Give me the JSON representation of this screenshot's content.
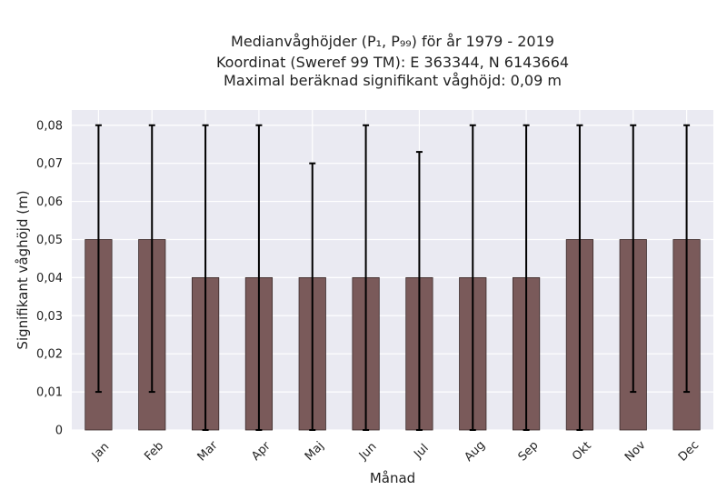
{
  "chart_data": {
    "type": "bar",
    "title_lines": [
      "Medianvåghöjder (P₁, P₉₉) för år 1979 - 2019",
      "Koordinat (Sweref 99 TM): E 363344, N 6143664",
      "Maximal beräknad signifikant våghöjd: 0,09 m"
    ],
    "xlabel": "Månad",
    "ylabel": "Signifikant våghöjd (m)",
    "categories": [
      "Jan",
      "Feb",
      "Mar",
      "Apr",
      "Maj",
      "Jun",
      "Jul",
      "Aug",
      "Sep",
      "Okt",
      "Nov",
      "Dec"
    ],
    "values": [
      0.05,
      0.05,
      0.04,
      0.04,
      0.04,
      0.04,
      0.04,
      0.04,
      0.04,
      0.05,
      0.05,
      0.05
    ],
    "error_low": [
      0.01,
      0.01,
      0.0,
      0.0,
      0.0,
      0.0,
      0.0,
      0.0,
      0.0,
      0.0,
      0.01,
      0.01
    ],
    "error_high": [
      0.08,
      0.08,
      0.08,
      0.08,
      0.07,
      0.08,
      0.073,
      0.08,
      0.08,
      0.08,
      0.08,
      0.08
    ],
    "ylim": [
      0,
      0.084
    ],
    "yticks": [
      "0",
      "0,01",
      "0,02",
      "0,03",
      "0,04",
      "0,05",
      "0,06",
      "0,07",
      "0,08"
    ],
    "ytick_values": [
      0,
      0.01,
      0.02,
      0.03,
      0.04,
      0.05,
      0.06,
      0.07,
      0.08
    ],
    "grid": true,
    "colors": {
      "bar": "#7a5a5a",
      "bar_edge": "#3a2a2a",
      "plot_bg": "#eaeaf2",
      "grid": "#ffffff",
      "error": "#000000"
    }
  }
}
